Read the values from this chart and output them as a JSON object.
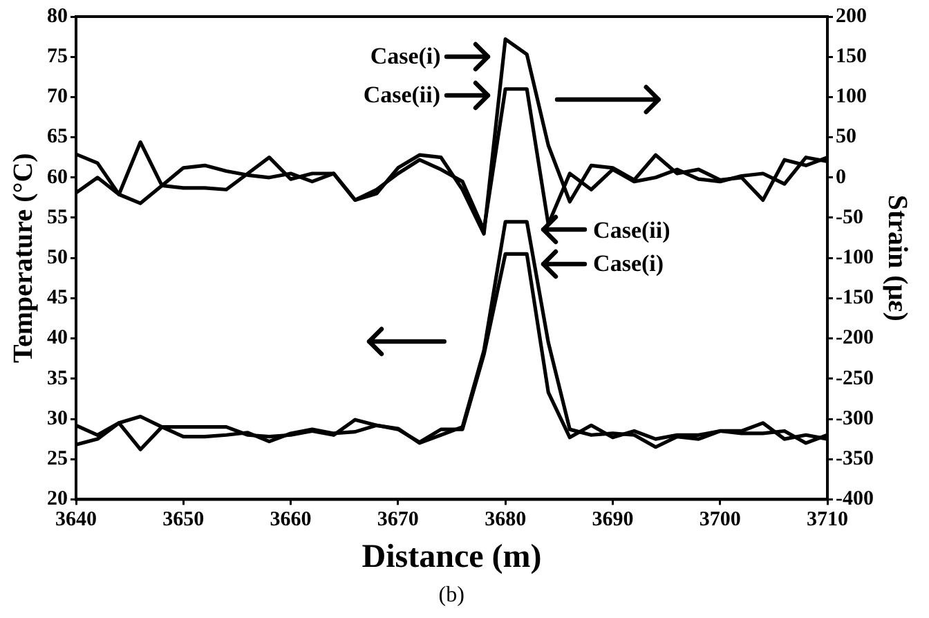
{
  "chart_data": {
    "type": "line",
    "xlabel": "Distance (m)",
    "ylabel": "Temperature (°C)",
    "y2label": "Strain (με)",
    "x": [
      3640,
      3642,
      3644,
      3646,
      3648,
      3650,
      3652,
      3654,
      3656,
      3658,
      3660,
      3662,
      3664,
      3666,
      3668,
      3670,
      3672,
      3674,
      3676,
      3678,
      3680,
      3682,
      3684,
      3686,
      3688,
      3690,
      3692,
      3694,
      3696,
      3698,
      3700,
      3702,
      3704,
      3706,
      3708,
      3710
    ],
    "series": [
      {
        "color": "#000000",
        "axis": "y2",
        "values": [
          29,
          18,
          -21,
          44,
          -10,
          -13,
          -13,
          -15,
          5,
          25,
          -2,
          5,
          5,
          -28,
          -20,
          12,
          28,
          25,
          -15,
          -70,
          172,
          153,
          40,
          -30,
          15,
          12,
          -3,
          28,
          5,
          10,
          -3,
          0,
          -28,
          22,
          15,
          25
        ]
      },
      {
        "color": "#000000",
        "axis": "y2",
        "values": [
          -19,
          0,
          -21,
          -32,
          -10,
          12,
          15,
          8,
          3,
          0,
          5,
          -5,
          5,
          -28,
          -15,
          5,
          22,
          10,
          -5,
          -65,
          110,
          110,
          -58,
          5,
          -15,
          10,
          -5,
          0,
          10,
          -2,
          -5,
          2,
          5,
          -8,
          25,
          20
        ]
      },
      {
        "color": "#000000",
        "values": [
          29.2,
          28,
          29.5,
          30.3,
          29,
          29,
          29,
          29,
          28,
          27.8,
          28,
          28.5,
          28,
          29.9,
          29.2,
          28.7,
          27.1,
          28.7,
          28.7,
          38,
          50.5,
          50.5,
          33.3,
          27.7,
          29.2,
          27.7,
          28.5,
          27.5,
          28,
          28,
          28.5,
          28.5,
          29.5,
          27.5,
          28,
          27.5
        ]
      },
      {
        "color": "#000000",
        "values": [
          26.8,
          27.5,
          29.5,
          26.2,
          29,
          27.8,
          27.8,
          28,
          28.3,
          27.2,
          28.2,
          28.7,
          28.2,
          28.4,
          29.2,
          28.8,
          27,
          28,
          29,
          38.5,
          54.5,
          54.5,
          39.5,
          28.7,
          28,
          28.2,
          28,
          26.5,
          27.8,
          27.5,
          28.5,
          28.2,
          28.2,
          28.5,
          27,
          28
        ]
      }
    ],
    "xlim": [
      3640,
      3710
    ],
    "xticks": [
      3640,
      3650,
      3660,
      3670,
      3680,
      3690,
      3700,
      3710
    ],
    "ylim": [
      20,
      80
    ],
    "yticks": [
      20,
      25,
      30,
      35,
      40,
      45,
      50,
      55,
      60,
      65,
      70,
      75,
      80
    ],
    "y2lim": [
      -400,
      200
    ],
    "y2ticks": [
      -400,
      -350,
      -300,
      -250,
      -200,
      -150,
      -100,
      -50,
      0,
      50,
      100,
      150,
      200
    ],
    "grid": false,
    "legend": false,
    "marker": "none",
    "line_style": "solid",
    "annotations": [
      "Case(i)",
      "Case(ii)",
      "Case(ii)",
      "Case(i)",
      "(b)"
    ]
  }
}
